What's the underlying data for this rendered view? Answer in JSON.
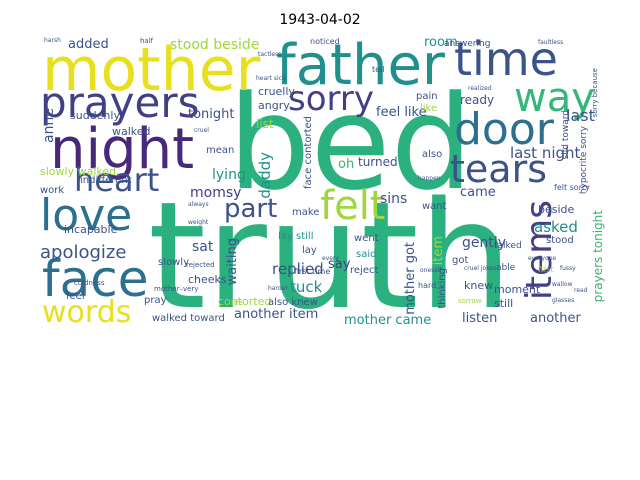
{
  "title": "1943-04-02",
  "colors": {
    "yellow": "#e8e01e",
    "lime": "#9fd73a",
    "green": "#41b06e",
    "teal": "#21908d",
    "blue": "#2c6f8e",
    "indigo": "#3b528b",
    "navy": "#433e85",
    "purple": "#482878",
    "violet": "#440154"
  },
  "words": {
    "truth": "truth",
    "bed": "bed",
    "mother": "mother",
    "father": "father",
    "time": "time",
    "way": "way",
    "prayers": "prayers",
    "night": "night",
    "sorry": "sorry",
    "door": "door",
    "tears": "tears",
    "love": "love",
    "heart": "heart",
    "felt": "felt",
    "part": "part",
    "face": "face",
    "words": "words",
    "apologize": "apologize",
    "item": "item",
    "items": "items",
    "stood_beside": "stood beside",
    "added": "added",
    "room": "room",
    "last_night": "last night",
    "last": "last",
    "tonight": "tonight",
    "lying": "lying",
    "momsy": "momsy",
    "sat": "sat",
    "replied": "replied",
    "tuck": "tuck",
    "gently": "gently",
    "asked": "asked",
    "came": "came",
    "mother_came": "mother came",
    "listen": "listen",
    "another": "another",
    "another_item": "another item",
    "ready": "ready",
    "prayers_tonight": "prayers tonight",
    "mother_got": "mother got",
    "anne": "anne",
    "daddy": "daddy",
    "slowly_walked": "slowly walked",
    "suddenly": "suddenly",
    "walked": "walked",
    "walked_toward": "walked toward",
    "cruelly": "cruelly",
    "angry": "angry",
    "list": "list",
    "feel_like": "feel like",
    "turned": "turned",
    "oh": "oh",
    "sins": "sins",
    "say": "say",
    "said": "said",
    "went": "went",
    "reject": "reject",
    "lay_still": "lay still",
    "contorted": "contorted",
    "cheeks": "cheeks",
    "waiting": "waiting",
    "slowly": "slowly",
    "incapable": "incapable",
    "indifferent": "indifferent",
    "work": "work",
    "pray": "pray",
    "feel": "feel",
    "make": "make",
    "also_knew": "also knew",
    "also": "also",
    "face_contorted": "face contorted",
    "got": "got",
    "moment": "moment",
    "still": "still",
    "knew": "knew",
    "beside": "beside",
    "stood": "stood",
    "want": "want",
    "talked": "talked",
    "able": "able",
    "pain": "pain",
    "thinking": "thinking",
    "hypocrite_sorry": "hypocrite sorry",
    "answering": "answering",
    "noticed": "noticed",
    "mean": "mean",
    "hard": "hard",
    "first": "first",
    "first_time": "first time",
    "felt_sorry": "felt sorry",
    "slid_toward": "slid toward",
    "like": "like",
    "tell": "tell",
    "half": "half",
    "lay": "lay",
    "rejected": "rejected",
    "life": "life",
    "harsh": "harsh",
    "cruel": "cruel",
    "mother_very": "mother–very",
    "coldness": "coldness",
    "tactless": "tactless",
    "faultless": "faultless",
    "everyone": "everyone",
    "sorrow": "sorrow",
    "always": "always",
    "every": "every",
    "heart_sick": "heart sick",
    "cruel_jokes": "cruel jokes",
    "realized": "realized",
    "happen": "happen",
    "sorry_because": "sorry because",
    "read": "read",
    "fussy": "fussy",
    "wallow": "wallow",
    "glasses": "glasses",
    "harder": "harder",
    "oneself": "oneself",
    "weight": "weight"
  }
}
